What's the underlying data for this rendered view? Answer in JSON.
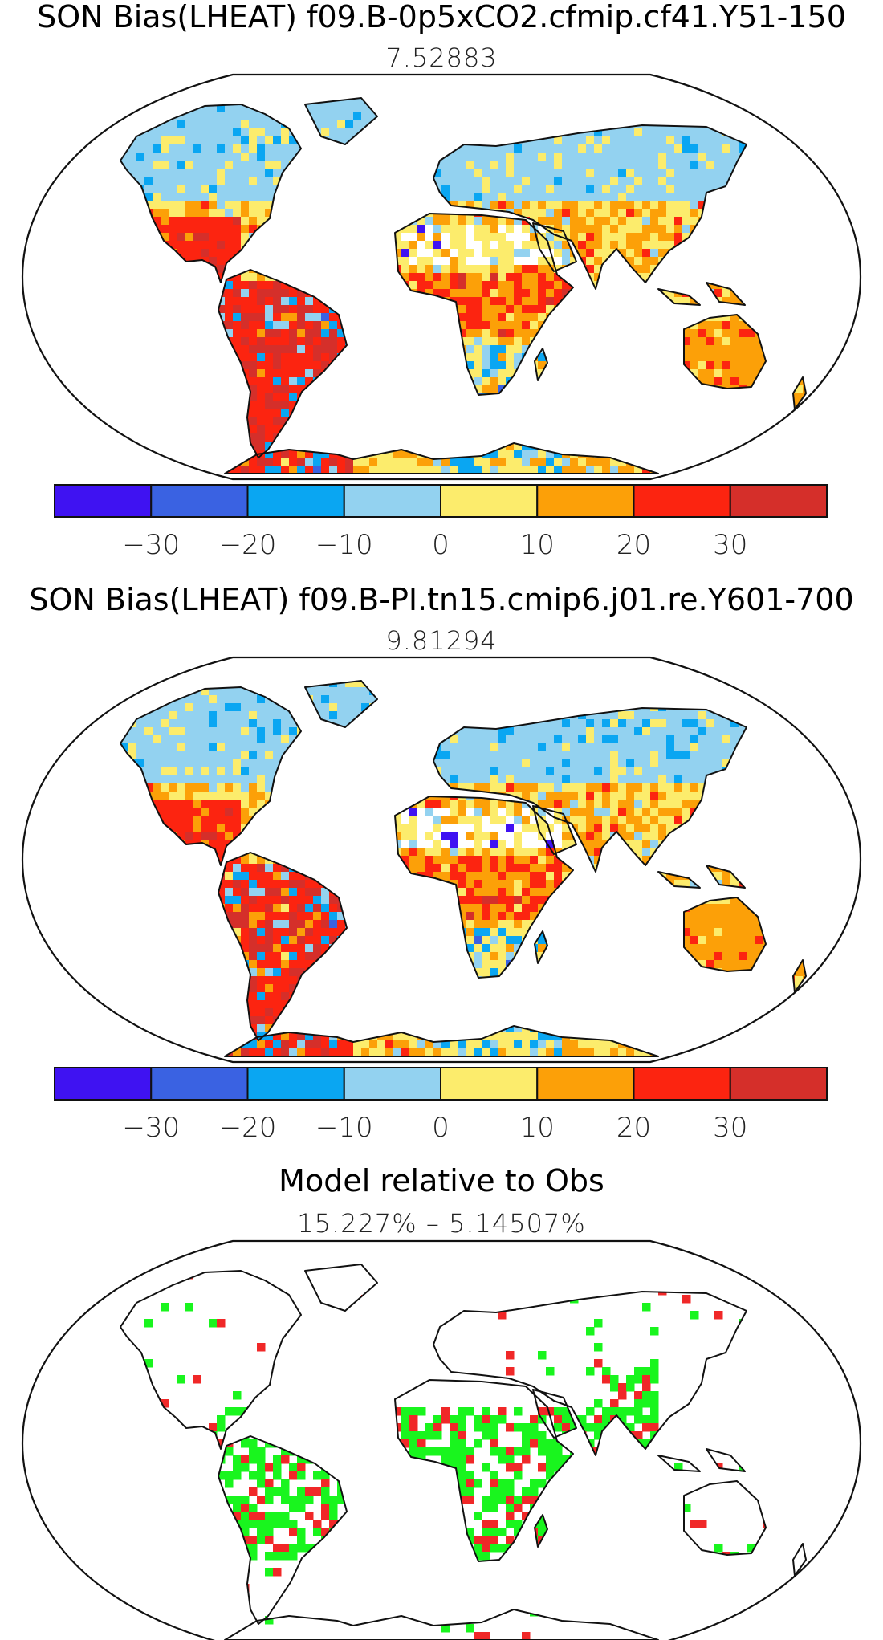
{
  "panels": [
    {
      "title": "SON Bias(LHEAT) f09.B-0p5xCO2.cfmip.cf41.Y51-150",
      "subtitle": "7.52883",
      "kind": "bias"
    },
    {
      "title": "SON Bias(LHEAT) f09.B-PI.tn15.cmip6.j01.re.Y601-700",
      "subtitle": "9.81294",
      "kind": "bias"
    },
    {
      "title": "Model relative to Obs",
      "subtitle": "15.227% – 5.14507%",
      "kind": "relative"
    }
  ],
  "colorbar": {
    "tick_labels": [
      "−30",
      "−20",
      "−10",
      "0",
      "10",
      "20",
      "30"
    ],
    "colors": [
      "#3f12f2",
      "#3a62e2",
      "#0aa6f2",
      "#93d2f0",
      "#fcec6c",
      "#fca008",
      "#fc2410",
      "#d52f2a"
    ]
  },
  "relative_colors": {
    "better": "#19f51e",
    "worse": "#f02828"
  }
}
